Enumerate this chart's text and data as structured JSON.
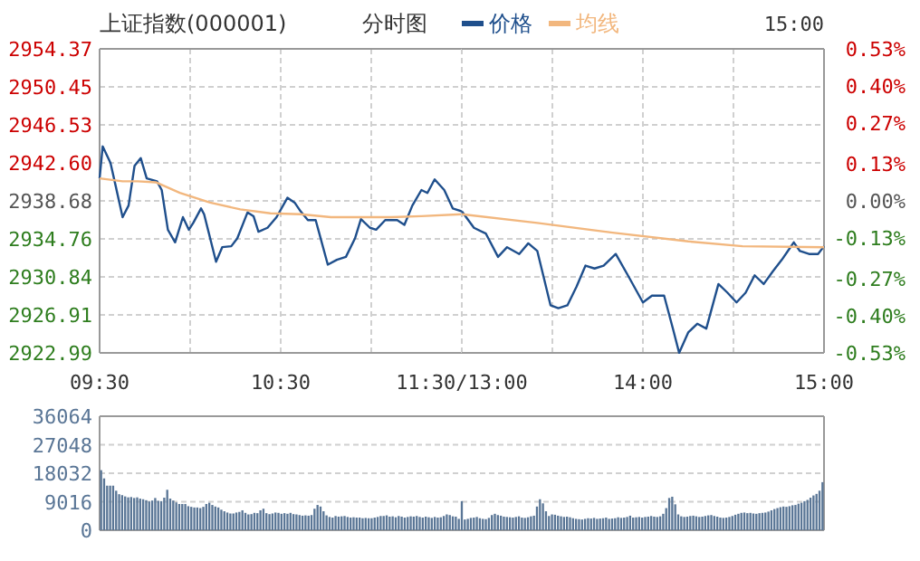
{
  "chart_data": [
    {
      "type": "line",
      "title": "上证指数(000001)",
      "subtitle": "分时图",
      "xlim": [
        9.5,
        11.5
      ],
      "xticks": [
        {
          "value": 9.5,
          "label": "09:30"
        },
        {
          "value": 10,
          "label": null
        },
        {
          "value": 10.5,
          "label": "10:30"
        },
        {
          "value": 11,
          "label": null
        },
        {
          "value": 11.5,
          "label": "11:30/13:00"
        }
      ],
      "ylim": [
        2922.99,
        2954.37
      ],
      "yticks": [
        2922.99,
        2926.91,
        2930.84,
        2934.76,
        2938.68,
        {
          "value": 2942.6,
          "label": "2942.60"
        },
        2946.53,
        2950.45,
        2954.37
      ],
      "grid": true,
      "legend": "top",
      "series": [
        {
          "name": "价格",
          "color": "#1f4f8c",
          "x": [
            9.5,
            9.517,
            9.56,
            9.583,
            9.627,
            9.66,
            9.693,
            9.727,
            9.76,
            9.817,
            9.843,
            9.877,
            9.917,
            9.96,
            9.993,
            10.017,
            10.06,
            10.077,
            10.143,
            10.177,
            10.227,
            10.26,
            10.317,
            10.35,
            10.377,
            10.427,
            10.477,
            10.537,
            10.577,
            10.61,
            10.65,
            10.693,
            10.76,
            10.81,
            10.86,
            10.91,
            10.943,
            10.993,
            11.027,
            11.077,
            11.143,
            11.183,
            11.227,
            11.277,
            11.31,
            11.35,
            11.403,
            11.45,
            11.5
          ],
          "values": [
            2941.0,
            2944.3,
            2942.6,
            2940.7,
            2937.0,
            2938.2,
            2942.3,
            2943.1,
            2941.0,
            2940.7,
            2939.8,
            2935.7,
            2934.4,
            2937.0,
            2935.7,
            2936.4,
            2937.9,
            2937.3,
            2932.4,
            2933.9,
            2934.0,
            2934.8,
            2937.5,
            2937.1,
            2935.5,
            2935.9,
            2937.0,
            2939.0,
            2938.5,
            2937.6,
            2936.7,
            2936.7,
            2932.1,
            2932.6,
            2932.9,
            2934.8,
            2936.8,
            2935.9,
            2935.7,
            2936.7,
            2936.7,
            2936.2,
            2938.2,
            2939.8,
            2939.5,
            2940.9,
            2939.8,
            2937.9,
            2937.6
          ]
        },
        {
          "name": "均线",
          "color": "#f2b77e",
          "x": [
            9.5,
            9.627,
            9.71,
            9.81,
            9.943,
            10.11,
            10.277,
            10.443,
            10.61,
            10.777,
            10.943,
            11.11,
            11.277,
            11.5
          ],
          "values": [
            2941.0,
            2940.7,
            2940.7,
            2940.6,
            2939.5,
            2938.5,
            2937.8,
            2937.4,
            2937.3,
            2937.0,
            2937.0,
            2937.0,
            2937.1,
            2937.3
          ]
        }
      ]
    },
    {
      "type": "line",
      "annotations": [
        "15:00"
      ],
      "tick_labels": "x",
      "xlim": [
        13,
        15
      ],
      "xticks": [
        {
          "value": 13,
          "label": null
        },
        {
          "value": 13.5,
          "label": null
        },
        {
          "value": 14,
          "label": "14:00"
        },
        {
          "value": 14.5,
          "label": null
        },
        {
          "value": 15,
          "label": "15:00"
        }
      ],
      "ylim": [
        2922.99,
        2954.37
      ],
      "yticks": [
        2922.99,
        2926.91,
        2930.84,
        2934.76,
        2938.68,
        2942.6,
        2946.53,
        2950.45,
        2954.37
      ],
      "y2lim": [
        -0.53,
        0.53
      ],
      "y2ticks": [
        {
          "value": -0.53,
          "label": "-0.53%"
        },
        {
          "value": -0.4,
          "label": "-0.40%"
        },
        {
          "value": -0.27,
          "label": "-0.27%"
        },
        {
          "value": -0.13,
          "label": "-0.13%"
        },
        {
          "value": 0,
          "label": "0.00%"
        },
        {
          "value": 0.13,
          "label": "0.13%"
        },
        {
          "value": 0.27,
          "label": "0.27%"
        },
        {
          "value": 0.4,
          "label": "0.40%"
        },
        {
          "value": 0.53,
          "label": "0.53%"
        }
      ],
      "grid": true,
      "series": [
        {
          "color": "#1f4f8c",
          "x": [
            13,
            13.067,
            13.133,
            13.2,
            13.25,
            13.317,
            13.367,
            13.417,
            13.49,
            13.533,
            13.583,
            13.633,
            13.683,
            13.733,
            13.783,
            13.85,
            13.917,
            14,
            14.05,
            14.117,
            14.167,
            14.2,
            14.25,
            14.3,
            14.35,
            14.417,
            14.467,
            14.517,
            14.567,
            14.617,
            14.667,
            14.717,
            14.767,
            14.8,
            14.833,
            14.867,
            14.917,
            14.967,
            15
          ],
          "values": [
            2937.6,
            2935.9,
            2935.3,
            2932.9,
            2933.9,
            2933.2,
            2934.3,
            2933.5,
            2927.9,
            2927.6,
            2927.9,
            2929.8,
            2932.0,
            2931.7,
            2932.0,
            2933.2,
            2931.0,
            2928.2,
            2928.9,
            2928.9,
            2925.4,
            2923.0,
            2925.1,
            2926.0,
            2925.5,
            2930.1,
            2929.2,
            2928.2,
            2929.2,
            2931.0,
            2930.1,
            2931.4,
            2932.6,
            2933.5,
            2934.4,
            2933.5,
            2933.2,
            2933.2,
            2934.0
          ]
        },
        {
          "color": "#f2b77e",
          "x": [
            13,
            13.417,
            13.833,
            14.25,
            14.55,
            15
          ],
          "values": [
            2937.3,
            2936.4,
            2935.4,
            2934.5,
            2934.0,
            2933.9
          ]
        }
      ]
    },
    {
      "type": "bar",
      "color": "#5a7696",
      "grid": "y",
      "ylim": [
        0,
        36064
      ],
      "yticks": [
        0,
        9016,
        18032,
        27048,
        36064
      ],
      "categories": [
        null,
        null,
        null,
        null,
        null,
        null,
        null,
        null,
        null,
        null,
        null,
        null,
        null,
        null,
        null,
        null,
        null,
        null,
        null,
        null,
        null,
        null,
        null,
        null,
        null,
        null,
        null,
        null,
        null,
        null,
        null,
        null,
        null,
        null,
        null,
        null,
        null,
        null,
        null,
        null,
        null,
        null,
        null,
        null,
        null,
        null,
        null,
        null,
        null,
        null,
        null,
        null,
        null,
        null,
        null,
        null,
        null,
        null,
        null,
        null,
        null,
        null,
        null,
        null,
        null,
        null,
        null,
        null,
        null,
        null,
        null,
        null,
        null,
        null,
        null,
        null,
        null,
        null,
        null,
        null,
        null,
        null,
        null,
        null,
        null,
        null,
        null,
        null,
        null,
        null,
        null,
        null,
        null,
        null,
        null,
        null,
        null,
        null,
        null,
        null,
        null,
        null,
        null,
        null,
        null,
        null,
        null,
        null,
        null,
        null,
        null,
        null,
        null,
        null,
        null,
        null,
        null,
        null,
        null,
        null,
        null,
        null,
        null,
        null,
        null,
        null,
        null,
        null,
        null,
        null,
        null,
        null,
        null,
        null,
        null,
        null,
        null,
        null,
        null,
        null,
        null,
        null,
        null,
        null,
        null,
        null,
        null,
        null,
        null,
        null,
        null,
        null,
        null,
        null,
        null,
        null,
        null,
        null,
        null,
        null,
        null,
        null,
        null,
        null,
        null,
        null,
        null,
        null,
        null,
        null,
        null,
        null,
        null,
        null,
        null,
        null,
        null,
        null,
        null,
        null,
        null,
        null,
        null,
        null,
        null,
        null,
        null,
        null,
        null,
        null,
        null,
        null,
        null,
        null,
        null,
        null,
        null,
        null,
        null,
        null,
        null,
        null,
        null,
        null,
        null,
        null,
        null,
        null,
        null,
        null,
        null,
        null,
        null,
        null,
        null,
        null,
        null,
        null,
        null,
        null,
        null,
        null,
        null,
        null,
        null,
        null,
        null,
        null,
        null,
        null,
        null,
        null,
        null,
        null,
        null,
        null,
        null,
        null,
        null,
        null,
        null
      ],
      "values": [
        19000,
        16400,
        14100,
        14100,
        14100,
        12500,
        11400,
        11100,
        10700,
        10400,
        10500,
        10200,
        10400,
        10000,
        9800,
        9500,
        9100,
        9400,
        10200,
        9300,
        9200,
        10300,
        12800,
        10000,
        9400,
        8800,
        8300,
        8300,
        8300,
        7600,
        7400,
        7200,
        7200,
        7000,
        7400,
        8300,
        8700,
        8000,
        7500,
        7200,
        6500,
        6000,
        5600,
        5300,
        5300,
        5600,
        5800,
        6300,
        5500,
        5000,
        5100,
        5500,
        5400,
        6300,
        6800,
        5400,
        5100,
        5300,
        5600,
        5500,
        5200,
        5400,
        5200,
        5500,
        5100,
        5000,
        4800,
        4600,
        4700,
        4600,
        4800,
        6800,
        8000,
        7500,
        6000,
        4700,
        4200,
        4000,
        4500,
        4300,
        4400,
        4500,
        4200,
        4000,
        4100,
        4000,
        4000,
        3800,
        3900,
        3800,
        3800,
        4000,
        4200,
        4500,
        4500,
        4700,
        4300,
        4400,
        4100,
        4500,
        4300,
        4000,
        4200,
        4400,
        4300,
        4500,
        4200,
        4000,
        4300,
        4100,
        3900,
        4200,
        4000,
        4100,
        4500,
        5000,
        4800,
        4400,
        4300,
        3600,
        9200,
        3400,
        3600,
        3900,
        4000,
        4200,
        3800,
        3600,
        3500,
        3900,
        4800,
        5200,
        4800,
        4600,
        4300,
        4200,
        4100,
        4000,
        4200,
        4400,
        4000,
        3900,
        4100,
        4400,
        4600,
        7500,
        9800,
        8500,
        6000,
        4500,
        5000,
        4900,
        4600,
        4400,
        4200,
        4300,
        4100,
        3800,
        3600,
        3500,
        3400,
        3600,
        3800,
        3700,
        3900,
        3600,
        3700,
        3800,
        4000,
        3600,
        3700,
        3800,
        4100,
        3900,
        4000,
        4200,
        4600,
        4000,
        4100,
        4200,
        4000,
        4200,
        4300,
        4500,
        4300,
        4200,
        4400,
        5200,
        7000,
        10200,
        10600,
        8200,
        5000,
        4400,
        4200,
        4300,
        4500,
        4600,
        4400,
        4200,
        4300,
        4500,
        4700,
        4800,
        4500,
        4300,
        4000,
        3900,
        4000,
        4200,
        4500,
        4900,
        5200,
        5500,
        5600,
        5400,
        5500,
        5300,
        5200,
        5400,
        5500,
        5600,
        5900,
        6300,
        6700,
        7000,
        7300,
        7500,
        7400,
        7600,
        7900,
        8000,
        8400,
        8700,
        9200,
        9600,
        10300,
        11000,
        11500,
        12500,
        15200
      ]
    }
  ]
}
